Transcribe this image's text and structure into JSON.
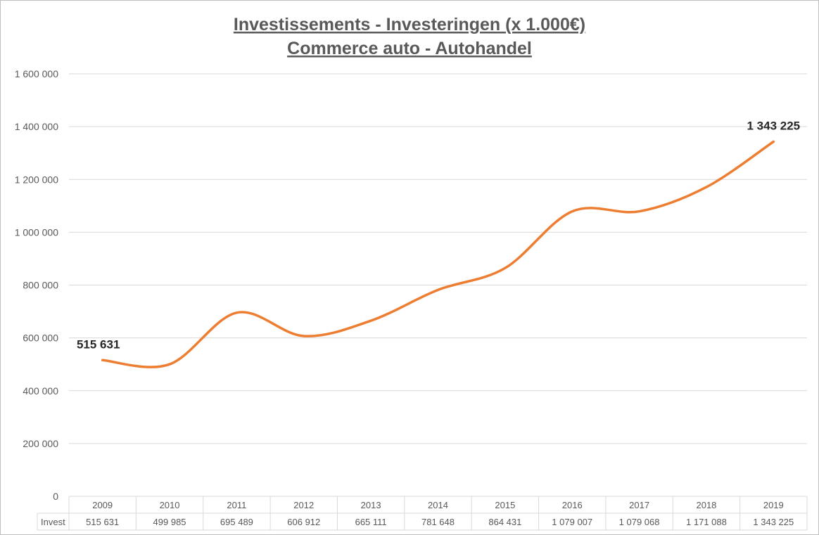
{
  "chart_data": {
    "type": "line",
    "title": "Investissements - Investeringen (x 1.000€)",
    "subtitle": "Commerce auto - Autohandel",
    "categories": [
      "2009",
      "2010",
      "2011",
      "2012",
      "2013",
      "2014",
      "2015",
      "2016",
      "2017",
      "2018",
      "2019"
    ],
    "series": [
      {
        "name": "Invest",
        "values": [
          515631,
          499985,
          695489,
          606912,
          665111,
          781648,
          864431,
          1079007,
          1079068,
          1171088,
          1343225
        ],
        "value_labels": [
          "515 631",
          "499 985",
          "695 489",
          "606 912",
          "665 111",
          "781 648",
          "864 431",
          "1 079 007",
          "1 079 068",
          "1 171 088",
          "1 343 225"
        ],
        "color": "#ed7d31"
      }
    ],
    "ylim": [
      0,
      1600000
    ],
    "yticks": [
      0,
      200000,
      400000,
      600000,
      800000,
      1000000,
      1200000,
      1400000,
      1600000
    ],
    "ytick_labels": [
      "0",
      "200 000",
      "400 000",
      "600 000",
      "800 000",
      "1 000 000",
      "1 200 000",
      "1 400 000",
      "1 600 000"
    ],
    "data_labels": [
      {
        "index": 0,
        "text": "515 631"
      },
      {
        "index": 10,
        "text": "1 343 225"
      }
    ],
    "smooth": true,
    "grid": true,
    "data_table": true,
    "gridline_color": "#d9d9d9"
  }
}
